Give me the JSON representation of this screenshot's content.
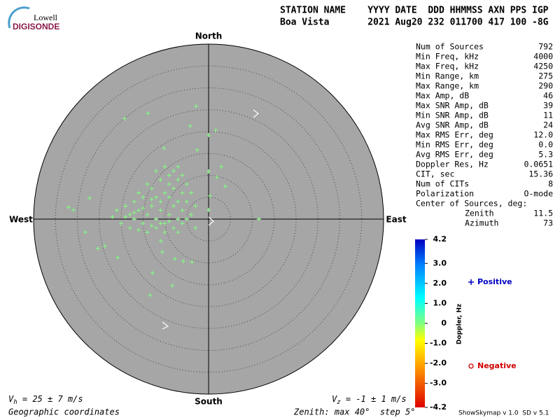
{
  "logo": {
    "top": "Lowell",
    "bottom": "DIGISONDE"
  },
  "header": {
    "labels": "STATION NAME    YYYY DATE  DDD HHMMSS AXN PPS IGP",
    "values": "Boa Vista       2021 Aug20 232 011700 417 100 -8G"
  },
  "stats": [
    [
      "Num of Sources",
      "792"
    ],
    [
      "Min Freq, kHz",
      "4000"
    ],
    [
      "Max Freq, kHz",
      "4250"
    ],
    [
      "Min Range, km",
      "275"
    ],
    [
      "Max Range, km",
      "290"
    ],
    [
      "Max Amp, dB",
      "46"
    ],
    [
      "Max SNR Amp, dB",
      "39"
    ],
    [
      "Min SNR Amp, dB",
      "11"
    ],
    [
      "Avg SNR Amp, dB",
      "24"
    ],
    [
      "Max RMS Err, deg",
      "12.0"
    ],
    [
      "Min RMS Err, deg",
      "0.0"
    ],
    [
      "Avg RMS Err, deg",
      "5.3"
    ],
    [
      "Doppler Res, Hz",
      "0.0651"
    ],
    [
      "CIT, sec",
      "15.36"
    ],
    [
      "Num of CITs",
      "8"
    ],
    [
      "Polarization",
      "O-mode"
    ]
  ],
  "center": {
    "title": "Center of Sources, deg:",
    "rows": [
      [
        "Zenith",
        "11.5"
      ],
      [
        "Azimuth",
        "73"
      ]
    ]
  },
  "footer": {
    "vh": {
      "v": "V",
      "sub": "h",
      "rest": " = 25 ± 7 m/s"
    },
    "vz": {
      "v": "V",
      "sub": "z",
      "rest": " = -1 ± 1 m/s"
    },
    "coords": "Geographic coordinates",
    "zenith": "Zenith: max 40°  step 5°",
    "version": "ShowSkymap v 1.0  SD v 5.1"
  },
  "chart_data": {
    "type": "skymap",
    "directions": {
      "north": "North",
      "south": "South",
      "west": "West",
      "east": "East"
    },
    "rlim": [
      0,
      40
    ],
    "rticks": [
      5,
      10,
      15,
      20,
      25,
      30,
      35
    ],
    "grid": true,
    "color": "#80ff80",
    "x": [
      -2.9,
      -13.8,
      -19.2,
      -4.2,
      1.6,
      0,
      -10.2,
      -2.6,
      2.9,
      0,
      1.9,
      3.8,
      11.5,
      -32,
      -30.9,
      -27.2,
      -28.2,
      -25.3,
      -23.7,
      -20.8,
      -10.6,
      -7.7,
      -5.8,
      -3.8,
      -12.8,
      -8.3,
      -13.4,
      -10.9,
      0.3,
      0,
      -18,
      -17,
      -16,
      -15,
      -14,
      -13,
      -12,
      -11,
      -10,
      -9,
      -8,
      -7,
      -6,
      -5,
      -12,
      -10,
      -9,
      -8,
      -7,
      -6,
      -5,
      -9,
      -8,
      -7,
      -11,
      -13,
      -15,
      -17,
      -19,
      -20,
      -18,
      -16,
      -14,
      -12,
      -10,
      -8,
      -6,
      -4,
      -3,
      -4,
      -16,
      -14,
      -12,
      -10,
      -6,
      -11,
      -13,
      -9,
      -7,
      -15,
      -17,
      -19,
      -11,
      -9,
      -7,
      -13,
      -5,
      -3,
      -21,
      -22
    ],
    "y": [
      25.8,
      24.2,
      23.0,
      21.3,
      20.3,
      19.2,
      16.2,
      15.8,
      12.0,
      10.9,
      9.6,
      7.5,
      0,
      2.7,
      2.1,
      4.8,
      -3.0,
      -6.7,
      -6.2,
      -8.8,
      -7.5,
      -9.1,
      -9.6,
      -9.8,
      -12.3,
      -15.2,
      -17.4,
      -5,
      5.3,
      2.1,
      1,
      0,
      2,
      -1,
      1,
      3,
      0,
      2,
      -1,
      1,
      3,
      0,
      2,
      4,
      5,
      6,
      8,
      7,
      9,
      6,
      8,
      10,
      11,
      12,
      9,
      7,
      5,
      4,
      3,
      -1,
      -2,
      -2.5,
      -3,
      -2,
      -3,
      -2,
      -1,
      1,
      3,
      6,
      6,
      8,
      11,
      12,
      10,
      -1,
      -1.5,
      -0.5,
      -3,
      2.5,
      1.5,
      0.5,
      4,
      5,
      4,
      4.5,
      0,
      -2,
      2,
      0.5
    ]
  },
  "colorbar": {
    "label": "Doppler, Hz",
    "lim": [
      -4.2,
      4.2
    ],
    "ticks": [
      4.2,
      {
        "value": 3,
        "label": "3.0"
      },
      {
        "value": 2,
        "label": "2.0"
      },
      {
        "value": 1,
        "label": "1.0"
      },
      0,
      {
        "value": -1,
        "label": "-1.0"
      },
      {
        "value": -2,
        "label": "-2.0"
      },
      {
        "value": -3,
        "label": "-3.0"
      },
      -4.2
    ]
  },
  "legend": [
    {
      "name": "Positive",
      "color": "#0000c0"
    },
    {
      "name": "Negative",
      "color": "#d00000"
    }
  ]
}
